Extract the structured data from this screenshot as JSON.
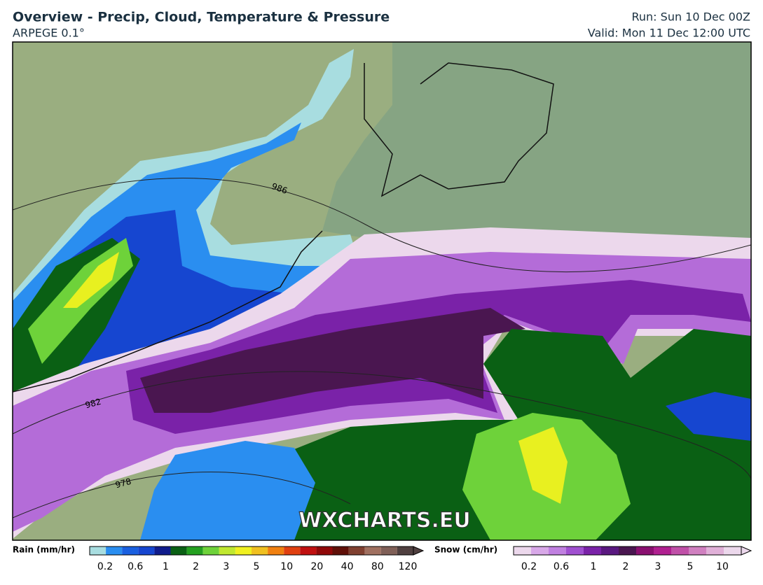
{
  "header": {
    "title": "Overview - Precip, Cloud, Temperature & Pressure",
    "model": "ARPEGE 0.1°",
    "run": "Run: Sun 10 Dec 00Z",
    "valid": "Valid: Mon 11 Dec 12:00 UTC"
  },
  "map": {
    "watermark": "WXCHARTS.EU",
    "isobars": [
      "986",
      "982",
      "978"
    ]
  },
  "legend": {
    "rain": {
      "title": "Rain (mm/hr)",
      "ticks": [
        "0.2",
        "0.6",
        "1",
        "2",
        "3",
        "5",
        "10",
        "20",
        "40",
        "80",
        "120"
      ]
    },
    "snow": {
      "title": "Snow (cm/hr)",
      "ticks": [
        "0.2",
        "0.6",
        "1",
        "2",
        "3",
        "5",
        "10"
      ]
    }
  }
}
